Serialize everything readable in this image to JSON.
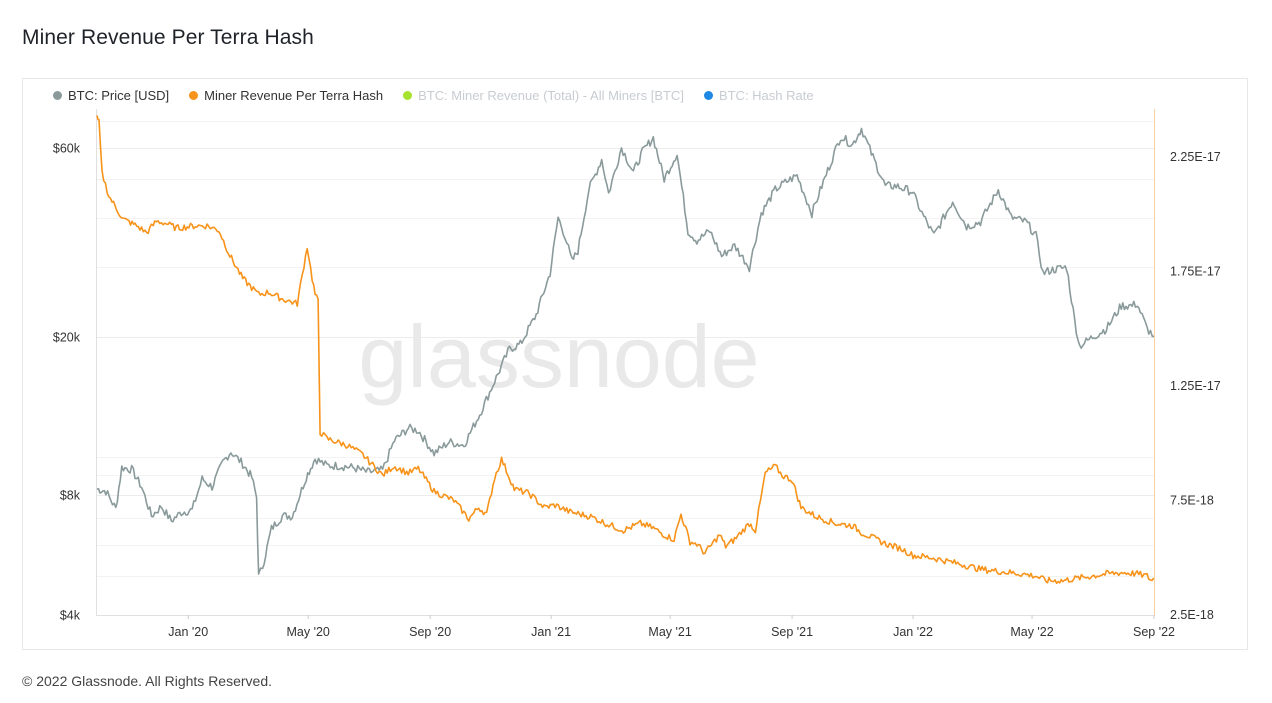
{
  "page": {
    "title": "Miner Revenue Per Terra Hash",
    "footer": "© 2022 Glassnode. All Rights Reserved.",
    "watermark": "glassnode"
  },
  "legend": [
    {
      "label": "BTC: Price [USD]",
      "color": "#8a9a9b",
      "active": true
    },
    {
      "label": "Miner Revenue Per Terra Hash",
      "color": "#f7931a",
      "active": true
    },
    {
      "label": "BTC: Miner Revenue (Total) - All Miners [BTC]",
      "color": "#a6e22e",
      "active": false
    },
    {
      "label": "BTC: Hash Rate",
      "color": "#1e88e5",
      "active": false
    }
  ],
  "chart_data": {
    "type": "line",
    "x_ticks": [
      "Jan '20",
      "May '20",
      "Sep '20",
      "Jan '21",
      "May '21",
      "Sep '21",
      "Jan '22",
      "May '22",
      "Sep '22"
    ],
    "x_range": [
      "2019-10-01",
      "2022-09-01"
    ],
    "y_left": {
      "scale": "log",
      "range": [
        4000,
        75000
      ],
      "ticks": [
        {
          "v": 4000,
          "label": "$4k"
        },
        {
          "v": 8000,
          "label": "$8k"
        },
        {
          "v": 20000,
          "label": "$20k"
        },
        {
          "v": 60000,
          "label": "$60k"
        }
      ],
      "minor_ticks": [
        5000,
        6000,
        7000,
        9000,
        10000,
        30000,
        40000,
        50000,
        70000
      ]
    },
    "y_right": {
      "scale": "linear",
      "range": [
        2.5e-18,
        2.46e-17
      ],
      "ticks": [
        {
          "v": 2.5e-18,
          "label": "2.5E-18"
        },
        {
          "v": 7.5e-18,
          "label": "7.5E-18"
        },
        {
          "v": 1.25e-17,
          "label": "1.25E-17"
        },
        {
          "v": 1.75e-17,
          "label": "1.75E-17"
        },
        {
          "v": 2.25e-17,
          "label": "2.25E-17"
        }
      ]
    },
    "grid": true,
    "legend_position": "top-left",
    "series": [
      {
        "name": "BTC: Price [USD]",
        "axis": "left",
        "color": "#8a9a9b",
        "x": [
          "2019-10-01",
          "2019-10-10",
          "2019-10-20",
          "2019-10-26",
          "2019-11-05",
          "2019-11-15",
          "2019-11-25",
          "2019-12-05",
          "2019-12-15",
          "2019-12-25",
          "2020-01-05",
          "2020-01-15",
          "2020-01-25",
          "2020-02-05",
          "2020-02-13",
          "2020-02-25",
          "2020-03-05",
          "2020-03-10",
          "2020-03-12",
          "2020-03-16",
          "2020-03-25",
          "2020-04-05",
          "2020-04-15",
          "2020-04-29",
          "2020-05-08",
          "2020-05-20",
          "2020-06-01",
          "2020-06-15",
          "2020-06-30",
          "2020-07-15",
          "2020-07-27",
          "2020-08-10",
          "2020-08-20",
          "2020-09-05",
          "2020-09-20",
          "2020-10-05",
          "2020-10-21",
          "2020-11-05",
          "2020-11-20",
          "2020-12-01",
          "2020-12-17",
          "2020-12-31",
          "2021-01-08",
          "2021-01-15",
          "2021-01-22",
          "2021-01-28",
          "2021-02-08",
          "2021-02-21",
          "2021-02-28",
          "2021-03-13",
          "2021-03-25",
          "2021-04-03",
          "2021-04-14",
          "2021-04-25",
          "2021-05-08",
          "2021-05-19",
          "2021-05-28",
          "2021-06-10",
          "2021-06-22",
          "2021-07-05",
          "2021-07-20",
          "2021-08-01",
          "2021-08-15",
          "2021-08-25",
          "2021-09-06",
          "2021-09-21",
          "2021-10-01",
          "2021-10-10",
          "2021-10-20",
          "2021-11-01",
          "2021-11-10",
          "2021-11-20",
          "2021-12-04",
          "2021-12-15",
          "2021-12-31",
          "2022-01-10",
          "2022-01-22",
          "2022-02-10",
          "2022-02-24",
          "2022-03-10",
          "2022-03-28",
          "2022-04-10",
          "2022-04-25",
          "2022-05-05",
          "2022-05-12",
          "2022-05-20",
          "2022-06-05",
          "2022-06-13",
          "2022-06-18",
          "2022-07-01",
          "2022-07-15",
          "2022-07-30",
          "2022-08-10",
          "2022-08-15",
          "2022-08-25",
          "2022-09-01"
        ],
        "values": [
          8300,
          8200,
          7400,
          9400,
          9300,
          8400,
          7100,
          7500,
          6900,
          7250,
          7350,
          8800,
          8400,
          9700,
          10300,
          9600,
          8900,
          7900,
          5000,
          5300,
          6600,
          7100,
          7100,
          8900,
          9900,
          9500,
          9500,
          9400,
          9150,
          9250,
          11000,
          11800,
          11650,
          10200,
          10900,
          10700,
          12800,
          15500,
          18700,
          19200,
          22800,
          29000,
          40000,
          36000,
          31000,
          33000,
          47000,
          56000,
          46000,
          60000,
          52000,
          58500,
          63500,
          50000,
          58000,
          37000,
          35000,
          37000,
          32000,
          34000,
          30000,
          41000,
          47000,
          49000,
          51000,
          41000,
          48000,
          55000,
          64000,
          61000,
          67000,
          58000,
          48000,
          48000,
          46500,
          41000,
          36000,
          44000,
          38000,
          39000,
          47000,
          40000,
          39000,
          36000,
          29000,
          29500,
          30000,
          22000,
          19000,
          20000,
          21000,
          24000,
          24000,
          24300,
          21000,
          20100
        ]
      },
      {
        "name": "Miner Revenue Per Terra Hash",
        "axis": "right",
        "color": "#f7931a",
        "x": [
          "2019-10-01",
          "2019-10-03",
          "2019-10-06",
          "2019-10-13",
          "2019-10-27",
          "2019-11-10",
          "2019-11-20",
          "2019-11-30",
          "2019-12-10",
          "2019-12-20",
          "2020-01-08",
          "2020-01-20",
          "2020-02-01",
          "2020-02-12",
          "2020-02-25",
          "2020-03-05",
          "2020-03-12",
          "2020-03-22",
          "2020-04-05",
          "2020-04-20",
          "2020-04-30",
          "2020-05-05",
          "2020-05-08",
          "2020-05-11",
          "2020-05-13",
          "2020-05-20",
          "2020-06-10",
          "2020-06-25",
          "2020-07-15",
          "2020-07-26",
          "2020-08-10",
          "2020-08-20",
          "2020-09-05",
          "2020-09-25",
          "2020-10-10",
          "2020-10-20",
          "2020-10-28",
          "2020-11-05",
          "2020-11-12",
          "2020-11-25",
          "2020-12-10",
          "2020-12-25",
          "2021-01-05",
          "2021-01-10",
          "2021-01-20",
          "2021-02-10",
          "2021-02-25",
          "2021-03-15",
          "2021-04-01",
          "2021-04-14",
          "2021-04-25",
          "2021-05-05",
          "2021-05-12",
          "2021-05-21",
          "2021-05-28",
          "2021-06-05",
          "2021-06-20",
          "2021-06-26",
          "2021-07-05",
          "2021-07-20",
          "2021-07-26",
          "2021-08-05",
          "2021-08-15",
          "2021-08-22",
          "2021-09-01",
          "2021-09-10",
          "2021-09-25",
          "2021-10-15",
          "2021-11-01",
          "2021-11-10",
          "2021-11-25",
          "2021-12-05",
          "2021-12-20",
          "2022-01-01",
          "2022-01-20",
          "2022-02-10",
          "2022-02-20",
          "2022-03-10",
          "2022-03-30",
          "2022-04-20",
          "2022-05-05",
          "2022-05-15",
          "2022-06-01",
          "2022-06-15",
          "2022-07-01",
          "2022-07-15",
          "2022-08-01",
          "2022-08-15",
          "2022-08-25",
          "2022-08-30",
          "2022-09-01"
        ],
        "values": [
          2.42e-17,
          2.4e-17,
          2.18e-17,
          2.08e-17,
          1.98e-17,
          1.95e-17,
          1.92e-17,
          1.97e-17,
          1.96e-17,
          1.94e-17,
          1.95e-17,
          1.95e-17,
          1.93e-17,
          1.82e-17,
          1.72e-17,
          1.68e-17,
          1.65e-17,
          1.66e-17,
          1.63e-17,
          1.61e-17,
          1.86e-17,
          1.72e-17,
          1.65e-17,
          1.62e-17,
          1.05e-17,
          1.02e-17,
          9.9e-18,
          9.5e-18,
          8.6e-18,
          9e-18,
          8.7e-18,
          8.9e-18,
          7.9e-18,
          7.5e-18,
          6.7e-18,
          7.2e-18,
          6.9e-18,
          8.5e-18,
          9.3e-18,
          8e-18,
          7.8e-18,
          7.2e-18,
          7.3e-18,
          7.2e-18,
          7e-18,
          6.8e-18,
          6.5e-18,
          6.2e-18,
          6.5e-18,
          6.3e-18,
          6e-18,
          5.8e-18,
          6.9e-18,
          5.7e-18,
          5.6e-18,
          5.2e-18,
          6e-18,
          5.5e-18,
          5.8e-18,
          6.5e-18,
          6.2e-18,
          8.7e-18,
          9e-18,
          8.6e-18,
          8.4e-18,
          7.2e-18,
          6.8e-18,
          6.5e-18,
          6.4e-18,
          6.1e-18,
          5.8e-18,
          5.6e-18,
          5.4e-18,
          5.1e-18,
          5e-18,
          4.8e-18,
          4.7e-18,
          4.5e-18,
          4.4e-18,
          4.3e-18,
          4.2e-18,
          4e-18,
          4e-18,
          4.1e-18,
          4.2e-18,
          4.3e-18,
          4.35e-18,
          4.3e-18,
          4.2e-18,
          4e-18,
          4.1e-18
        ]
      }
    ]
  }
}
